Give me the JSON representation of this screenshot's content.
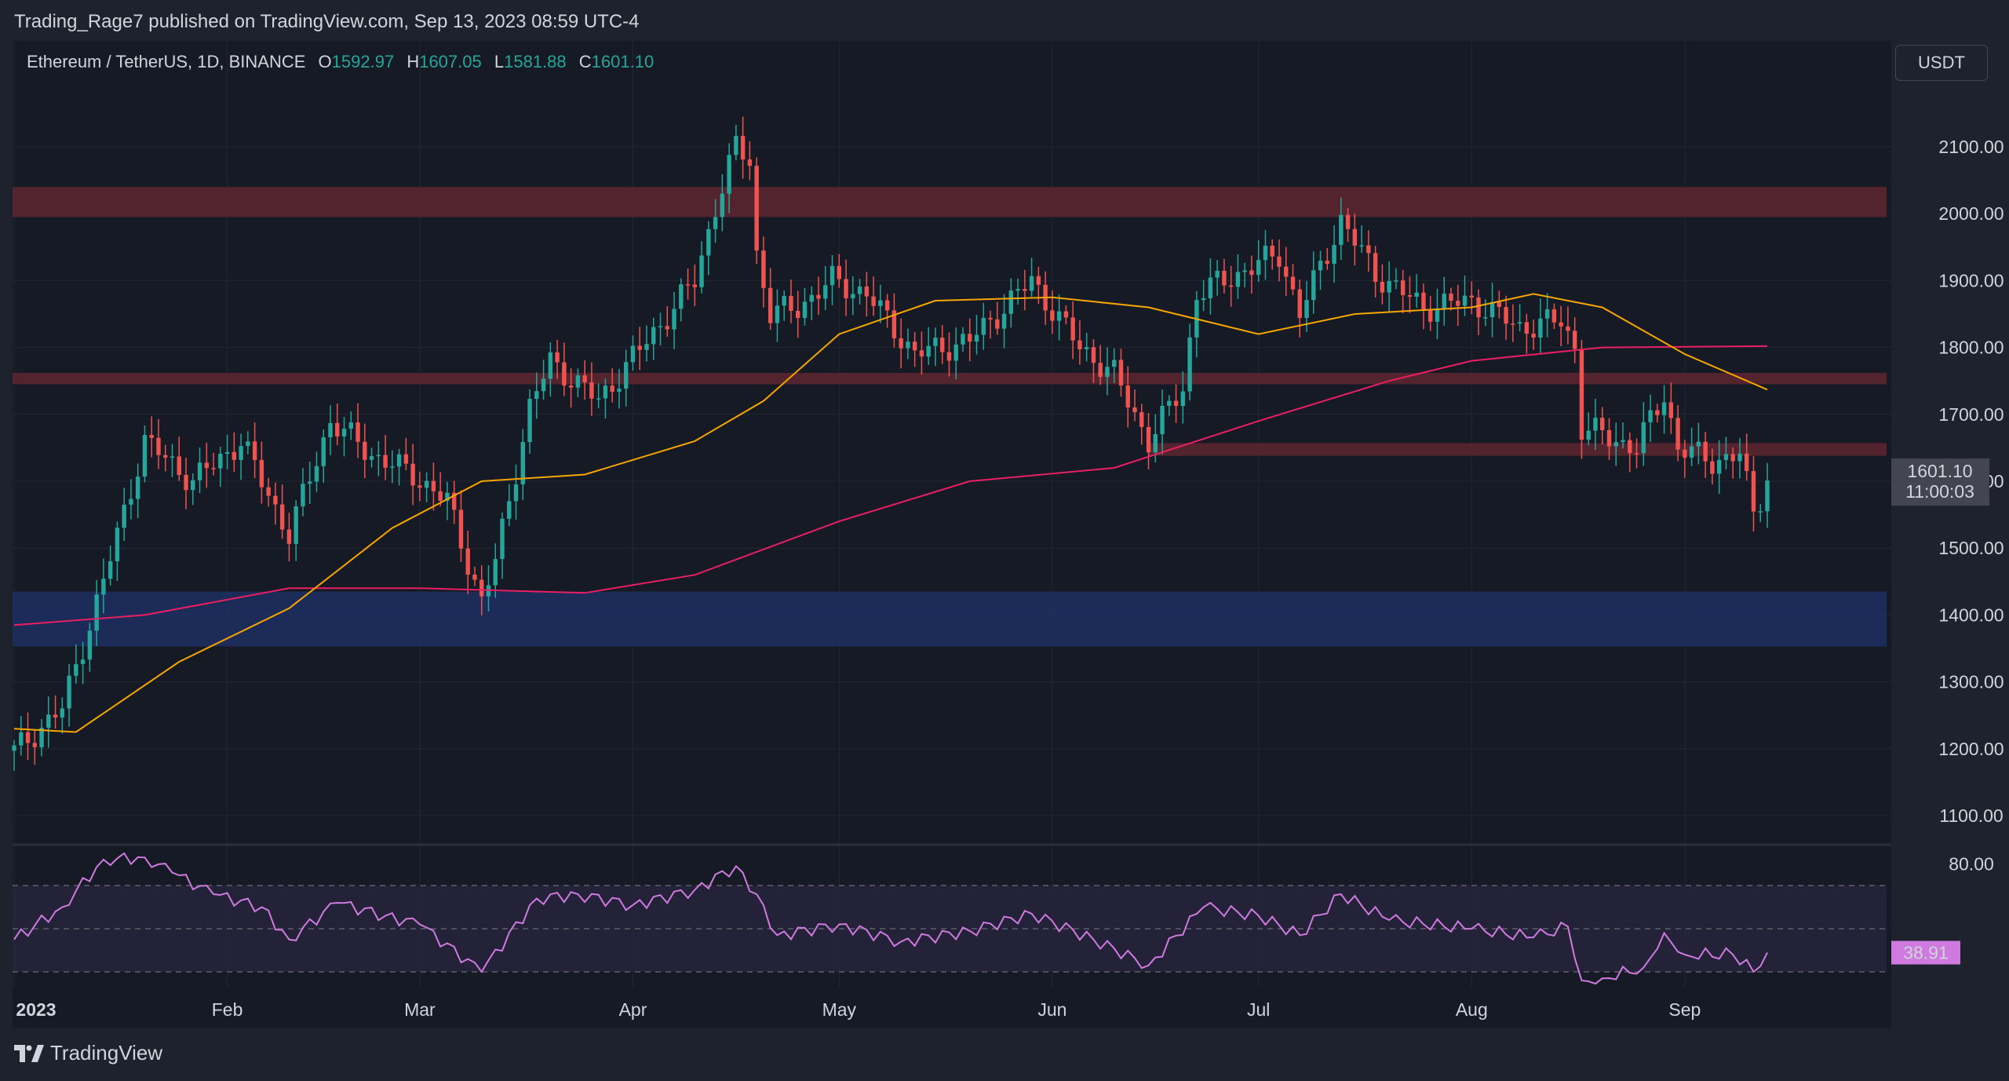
{
  "header": {
    "published_text": "Trading_Rage7 published on TradingView.com, Sep 13, 2023 08:59 UTC-4"
  },
  "legend": {
    "symbol": "Ethereum / TetherUS, 1D, BINANCE",
    "open_label": "O",
    "open": "1592.97",
    "high_label": "H",
    "high": "1607.05",
    "low_label": "L",
    "low": "1581.88",
    "close_label": "C",
    "close": "1601.10"
  },
  "currency_button": "USDT",
  "brand": {
    "name": "TradingView",
    "icon": "tradingview-logo-icon"
  },
  "colors": {
    "background": "#161a25",
    "up": "#26a69a",
    "down": "#ef5350",
    "ma50": "#f7a600",
    "ma200": "#e91e63",
    "resistance_zone": "#5a2530",
    "support_zone": "#1f2f63",
    "rsi_line": "#ce7ade",
    "rsi_band": "#2a2540"
  },
  "chart_data": [
    {
      "type": "candlestick",
      "pair": "ETH/USDT",
      "timeframe": "1D",
      "x": {
        "start": "2023-01-01",
        "end": "2023-09-13",
        "tick_labels": [
          "2023",
          "Feb",
          "Mar",
          "Apr",
          "May",
          "Jun",
          "Jul",
          "Aug",
          "Sep"
        ],
        "tick_dates": [
          "2023-01-01",
          "2023-02-01",
          "2023-03-01",
          "2023-04-01",
          "2023-05-01",
          "2023-06-01",
          "2023-07-01",
          "2023-08-01",
          "2023-09-01"
        ]
      },
      "y": {
        "range": [
          1020,
          2220
        ],
        "ticks": [
          1100,
          1200,
          1300,
          1400,
          1500,
          1600,
          1700,
          1800,
          1900,
          2000,
          2100
        ],
        "tick_labels": [
          "1100.00",
          "1200.00",
          "1300.00",
          "1400.00",
          "1500.00",
          "1600.00",
          "1700.00",
          "1800.00",
          "1900.00",
          "2000.00",
          "2100.00"
        ]
      },
      "price_anchors": [
        {
          "date": "2023-01-01",
          "close": 1196
        },
        {
          "date": "2023-01-08",
          "close": 1260
        },
        {
          "date": "2023-01-14",
          "close": 1450
        },
        {
          "date": "2023-01-20",
          "close": 1660
        },
        {
          "date": "2023-01-27",
          "close": 1600
        },
        {
          "date": "2023-02-03",
          "close": 1660
        },
        {
          "date": "2023-02-10",
          "close": 1520
        },
        {
          "date": "2023-02-16",
          "close": 1690
        },
        {
          "date": "2023-02-22",
          "close": 1640
        },
        {
          "date": "2023-02-28",
          "close": 1610
        },
        {
          "date": "2023-03-05",
          "close": 1570
        },
        {
          "date": "2023-03-10",
          "close": 1420
        },
        {
          "date": "2023-03-12",
          "close": 1480
        },
        {
          "date": "2023-03-17",
          "close": 1710
        },
        {
          "date": "2023-03-20",
          "close": 1780
        },
        {
          "date": "2023-03-27",
          "close": 1720
        },
        {
          "date": "2023-04-03",
          "close": 1810
        },
        {
          "date": "2023-04-07",
          "close": 1860
        },
        {
          "date": "2023-04-10",
          "close": 1900
        },
        {
          "date": "2023-04-13",
          "close": 2010
        },
        {
          "date": "2023-04-16",
          "close": 2100
        },
        {
          "date": "2023-04-18",
          "close": 2080
        },
        {
          "date": "2023-04-19",
          "close": 1940
        },
        {
          "date": "2023-04-21",
          "close": 1850
        },
        {
          "date": "2023-04-25",
          "close": 1860
        },
        {
          "date": "2023-04-30",
          "close": 1900
        },
        {
          "date": "2023-05-05",
          "close": 1880
        },
        {
          "date": "2023-05-12",
          "close": 1790
        },
        {
          "date": "2023-05-20",
          "close": 1810
        },
        {
          "date": "2023-05-29",
          "close": 1900
        },
        {
          "date": "2023-06-05",
          "close": 1800
        },
        {
          "date": "2023-06-10",
          "close": 1760
        },
        {
          "date": "2023-06-15",
          "close": 1660
        },
        {
          "date": "2023-06-20",
          "close": 1740
        },
        {
          "date": "2023-06-22",
          "close": 1880
        },
        {
          "date": "2023-06-30",
          "close": 1920
        },
        {
          "date": "2023-07-04",
          "close": 1940
        },
        {
          "date": "2023-07-07",
          "close": 1850
        },
        {
          "date": "2023-07-13",
          "close": 1990
        },
        {
          "date": "2023-07-18",
          "close": 1910
        },
        {
          "date": "2023-07-25",
          "close": 1860
        },
        {
          "date": "2023-08-01",
          "close": 1870
        },
        {
          "date": "2023-08-08",
          "close": 1830
        },
        {
          "date": "2023-08-14",
          "close": 1840
        },
        {
          "date": "2023-08-16",
          "close": 1800
        },
        {
          "date": "2023-08-17",
          "close": 1680
        },
        {
          "date": "2023-08-25",
          "close": 1650
        },
        {
          "date": "2023-08-29",
          "close": 1730
        },
        {
          "date": "2023-08-31",
          "close": 1650
        },
        {
          "date": "2023-09-05",
          "close": 1630
        },
        {
          "date": "2023-09-09",
          "close": 1640
        },
        {
          "date": "2023-09-11",
          "close": 1550
        },
        {
          "date": "2023-09-13",
          "close": 1601.1
        }
      ],
      "ma50": [
        {
          "date": "2023-01-01",
          "value": 1230
        },
        {
          "date": "2023-01-10",
          "value": 1225
        },
        {
          "date": "2023-01-25",
          "value": 1330
        },
        {
          "date": "2023-02-10",
          "value": 1410
        },
        {
          "date": "2023-02-25",
          "value": 1530
        },
        {
          "date": "2023-03-10",
          "value": 1600
        },
        {
          "date": "2023-03-25",
          "value": 1610
        },
        {
          "date": "2023-04-10",
          "value": 1660
        },
        {
          "date": "2023-04-20",
          "value": 1720
        },
        {
          "date": "2023-05-01",
          "value": 1820
        },
        {
          "date": "2023-05-15",
          "value": 1870
        },
        {
          "date": "2023-06-01",
          "value": 1875
        },
        {
          "date": "2023-06-15",
          "value": 1860
        },
        {
          "date": "2023-07-01",
          "value": 1820
        },
        {
          "date": "2023-07-15",
          "value": 1850
        },
        {
          "date": "2023-08-01",
          "value": 1860
        },
        {
          "date": "2023-08-10",
          "value": 1880
        },
        {
          "date": "2023-08-20",
          "value": 1860
        },
        {
          "date": "2023-09-01",
          "value": 1790
        },
        {
          "date": "2023-09-13",
          "value": 1737
        }
      ],
      "ma200": [
        {
          "date": "2023-01-01",
          "value": 1385
        },
        {
          "date": "2023-01-20",
          "value": 1400
        },
        {
          "date": "2023-02-10",
          "value": 1440
        },
        {
          "date": "2023-03-01",
          "value": 1440
        },
        {
          "date": "2023-03-25",
          "value": 1433
        },
        {
          "date": "2023-04-10",
          "value": 1460
        },
        {
          "date": "2023-05-01",
          "value": 1540
        },
        {
          "date": "2023-05-20",
          "value": 1600
        },
        {
          "date": "2023-06-10",
          "value": 1620
        },
        {
          "date": "2023-07-01",
          "value": 1690
        },
        {
          "date": "2023-07-20",
          "value": 1750
        },
        {
          "date": "2023-08-01",
          "value": 1780
        },
        {
          "date": "2023-08-20",
          "value": 1800
        },
        {
          "date": "2023-09-13",
          "value": 1802
        }
      ],
      "zones": [
        {
          "kind": "resistance",
          "from": 1995,
          "to": 2040
        },
        {
          "kind": "resistance",
          "from": 1745,
          "to": 1762
        },
        {
          "kind": "resistance",
          "from": 1638,
          "to": 1657,
          "start_date": "2023-06-15"
        },
        {
          "kind": "support",
          "from": 1353,
          "to": 1435
        }
      ],
      "last_price_tag": {
        "price": "1601.10",
        "countdown": "11:00:03"
      }
    },
    {
      "type": "line",
      "name": "RSI",
      "y": {
        "range": [
          0,
          100
        ],
        "ticks": [
          80
        ],
        "tick_labels": [
          "80.00"
        ],
        "upper_band": 70,
        "middle": 50,
        "lower_band": 30
      },
      "points": [
        {
          "date": "2023-01-01",
          "value": 45
        },
        {
          "date": "2023-01-08",
          "value": 60
        },
        {
          "date": "2023-01-14",
          "value": 82
        },
        {
          "date": "2023-01-20",
          "value": 83
        },
        {
          "date": "2023-01-24",
          "value": 76
        },
        {
          "date": "2023-01-30",
          "value": 66
        },
        {
          "date": "2023-02-06",
          "value": 60
        },
        {
          "date": "2023-02-10",
          "value": 45
        },
        {
          "date": "2023-02-17",
          "value": 62
        },
        {
          "date": "2023-02-24",
          "value": 56
        },
        {
          "date": "2023-03-01",
          "value": 52
        },
        {
          "date": "2023-03-10",
          "value": 30
        },
        {
          "date": "2023-03-18",
          "value": 64
        },
        {
          "date": "2023-03-24",
          "value": 66
        },
        {
          "date": "2023-04-01",
          "value": 61
        },
        {
          "date": "2023-04-10",
          "value": 68
        },
        {
          "date": "2023-04-16",
          "value": 79
        },
        {
          "date": "2023-04-19",
          "value": 66
        },
        {
          "date": "2023-04-22",
          "value": 47
        },
        {
          "date": "2023-05-01",
          "value": 52
        },
        {
          "date": "2023-05-10",
          "value": 44
        },
        {
          "date": "2023-05-20",
          "value": 49
        },
        {
          "date": "2023-05-29",
          "value": 57
        },
        {
          "date": "2023-06-07",
          "value": 45
        },
        {
          "date": "2023-06-15",
          "value": 33
        },
        {
          "date": "2023-06-23",
          "value": 60
        },
        {
          "date": "2023-07-01",
          "value": 56
        },
        {
          "date": "2023-07-07",
          "value": 47
        },
        {
          "date": "2023-07-13",
          "value": 66
        },
        {
          "date": "2023-07-20",
          "value": 54
        },
        {
          "date": "2023-08-01",
          "value": 50
        },
        {
          "date": "2023-08-10",
          "value": 46
        },
        {
          "date": "2023-08-15",
          "value": 51
        },
        {
          "date": "2023-08-17",
          "value": 26
        },
        {
          "date": "2023-08-20",
          "value": 27
        },
        {
          "date": "2023-08-26",
          "value": 32
        },
        {
          "date": "2023-08-29",
          "value": 48
        },
        {
          "date": "2023-09-01",
          "value": 38
        },
        {
          "date": "2023-09-08",
          "value": 38
        },
        {
          "date": "2023-09-11",
          "value": 30
        },
        {
          "date": "2023-09-13",
          "value": 38.91
        }
      ],
      "last_value_tag": "38.91"
    }
  ]
}
